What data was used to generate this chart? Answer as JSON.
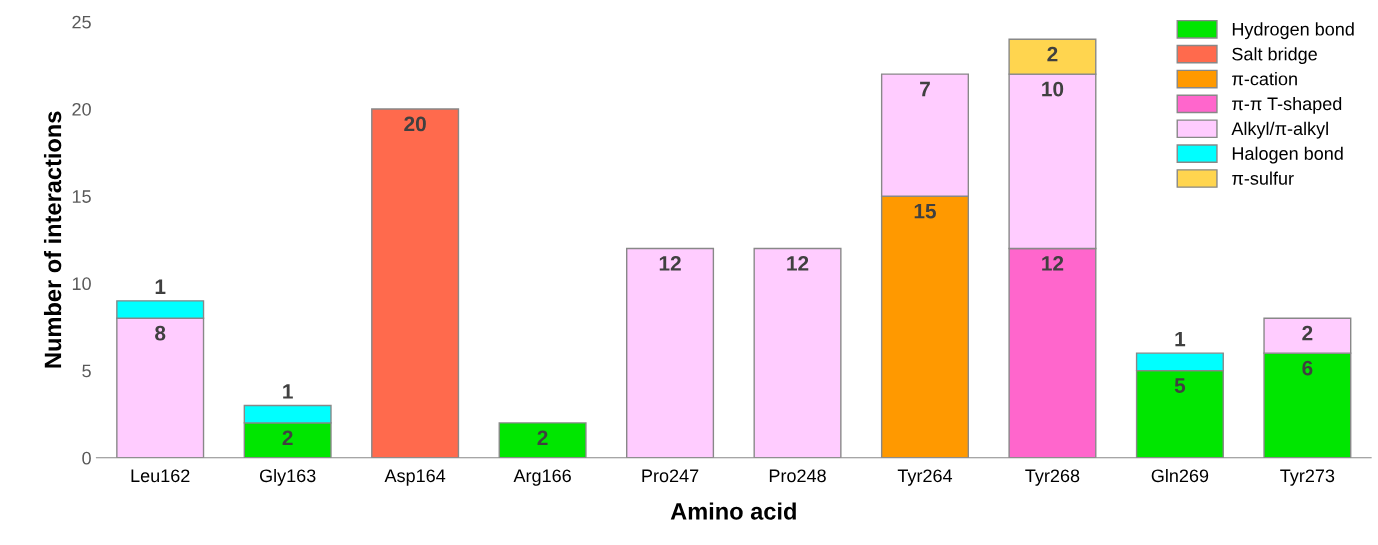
{
  "chart_data": {
    "type": "bar",
    "stacked": true,
    "xlabel": "Amino acid",
    "ylabel": "Number of interactions",
    "categories": [
      "Leu162",
      "Gly163",
      "Asp164",
      "Arg166",
      "Pro247",
      "Pro248",
      "Tyr264",
      "Tyr268",
      "Gln269",
      "Tyr273"
    ],
    "series": [
      {
        "name": "Hydrogen bond",
        "color": "#00e600",
        "values": [
          null,
          2,
          null,
          2,
          null,
          null,
          null,
          null,
          5,
          6
        ]
      },
      {
        "name": "Salt bridge",
        "color": "#ff6a4d",
        "values": [
          null,
          null,
          20,
          null,
          null,
          null,
          null,
          null,
          null,
          null
        ]
      },
      {
        "name": "π-cation",
        "color": "#ff9900",
        "values": [
          null,
          null,
          null,
          null,
          null,
          null,
          15,
          null,
          null,
          null
        ]
      },
      {
        "name": "π-π T-shaped",
        "color": "#ff66cc",
        "values": [
          null,
          null,
          null,
          null,
          null,
          null,
          null,
          12,
          null,
          null
        ]
      },
      {
        "name": "Alkyl/π-alkyl",
        "color": "#ffccff",
        "values": [
          8,
          null,
          null,
          null,
          12,
          12,
          7,
          10,
          null,
          2
        ]
      },
      {
        "name": "Halogen bond",
        "color": "#00ffff",
        "values": [
          1,
          1,
          null,
          null,
          null,
          null,
          null,
          null,
          1,
          null
        ]
      },
      {
        "name": "π-sulfur",
        "color": "#ffd54f",
        "values": [
          null,
          null,
          null,
          null,
          null,
          null,
          null,
          2,
          null,
          null
        ]
      }
    ],
    "ylim": [
      0,
      25
    ],
    "yticks": [
      0,
      5,
      10,
      15,
      20,
      25
    ],
    "data_labels": true,
    "legend": "top right",
    "grid": false
  }
}
